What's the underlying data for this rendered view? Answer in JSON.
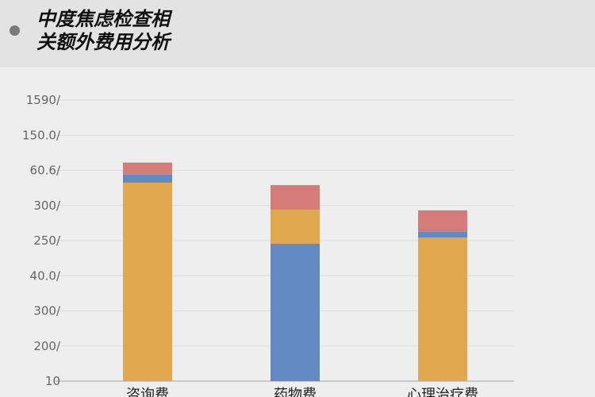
{
  "header": {
    "title": "中度焦虑检查相\n关额外费用分析"
  },
  "chart_data": {
    "type": "bar",
    "stacked": true,
    "title": "中度焦虑检查相关额外费用分析",
    "xlabel": "",
    "ylabel": "",
    "categories": [
      "咨询费",
      "药物费",
      "心理治疗费"
    ],
    "y_tick_labels": [
      "10",
      "200/",
      "300/",
      "40.0/",
      "250/",
      "300/",
      "60.6/",
      "150.0/",
      "1590/"
    ],
    "y_note": "tick labels are printed non-monotonically; values below are in gridline steps from the baseline",
    "ylim": [
      0,
      8
    ],
    "grid": true,
    "legend": "none",
    "series": [
      {
        "color": "#E2A84F",
        "values": [
          5.65,
          0.97,
          4.09
        ]
      },
      {
        "color": "#6389C2",
        "values": [
          0.23,
          3.91,
          0.16
        ]
      },
      {
        "color": "#D67C78",
        "values": [
          0.34,
          0.7,
          0.61
        ]
      }
    ],
    "stack_order": [
      [
        0,
        1,
        2
      ],
      [
        1,
        0,
        2
      ],
      [
        0,
        1,
        2
      ]
    ]
  }
}
